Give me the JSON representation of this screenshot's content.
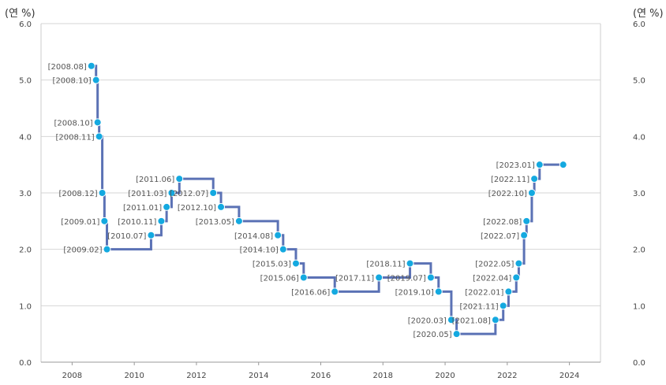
{
  "chart_data": {
    "type": "line",
    "step": "after",
    "y_unit_left": "(연 %)",
    "y_unit_right": "(연 %)",
    "ylim": [
      0,
      6
    ],
    "xlim": [
      2007,
      2025
    ],
    "y_ticks": [
      "0.0",
      "1.0",
      "2.0",
      "3.0",
      "4.0",
      "5.0",
      "6.0"
    ],
    "x_ticks": [
      "2008",
      "2010",
      "2012",
      "2014",
      "2016",
      "2018",
      "2020",
      "2022",
      "2024"
    ],
    "grid": "horizontal",
    "line_color": "#5b72b5",
    "marker_color": "#14a9e0",
    "points": [
      {
        "label": "[2008.08]",
        "x": 2008.62,
        "y": 5.25
      },
      {
        "label": "[2008.10]",
        "x": 2008.77,
        "y": 5.0
      },
      {
        "label": "[2008.10]",
        "x": 2008.82,
        "y": 4.25
      },
      {
        "label": "[2008.11]",
        "x": 2008.87,
        "y": 4.0
      },
      {
        "label": "[2008.12]",
        "x": 2008.97,
        "y": 3.0
      },
      {
        "label": "[2009.01]",
        "x": 2009.04,
        "y": 2.5
      },
      {
        "label": "[2009.02]",
        "x": 2009.12,
        "y": 2.0
      },
      {
        "label": "[2010.07]",
        "x": 2010.54,
        "y": 2.25
      },
      {
        "label": "[2010.11]",
        "x": 2010.87,
        "y": 2.5
      },
      {
        "label": "[2011.01]",
        "x": 2011.04,
        "y": 2.75
      },
      {
        "label": "[2011.03]",
        "x": 2011.2,
        "y": 3.0
      },
      {
        "label": "[2011.06]",
        "x": 2011.45,
        "y": 3.25
      },
      {
        "label": "[2012.07]",
        "x": 2012.54,
        "y": 3.0
      },
      {
        "label": "[2012.10]",
        "x": 2012.79,
        "y": 2.75
      },
      {
        "label": "[2013.05]",
        "x": 2013.37,
        "y": 2.5
      },
      {
        "label": "[2014.08]",
        "x": 2014.62,
        "y": 2.25
      },
      {
        "label": "[2014.10]",
        "x": 2014.79,
        "y": 2.0
      },
      {
        "label": "[2015.03]",
        "x": 2015.2,
        "y": 1.75
      },
      {
        "label": "[2015.06]",
        "x": 2015.45,
        "y": 1.5
      },
      {
        "label": "[2016.06]",
        "x": 2016.45,
        "y": 1.25
      },
      {
        "label": "[2017.11]",
        "x": 2017.87,
        "y": 1.5
      },
      {
        "label": "[2018.11]",
        "x": 2018.87,
        "y": 1.75
      },
      {
        "label": "[2019.07]",
        "x": 2019.54,
        "y": 1.5
      },
      {
        "label": "[2019.10]",
        "x": 2019.79,
        "y": 1.25
      },
      {
        "label": "[2020.03]",
        "x": 2020.2,
        "y": 0.75
      },
      {
        "label": "[2020.05]",
        "x": 2020.37,
        "y": 0.5
      },
      {
        "label": "[2021.08]",
        "x": 2021.62,
        "y": 0.75
      },
      {
        "label": "[2021.11]",
        "x": 2021.87,
        "y": 1.0
      },
      {
        "label": "[2022.01]",
        "x": 2022.04,
        "y": 1.25
      },
      {
        "label": "[2022.04]",
        "x": 2022.29,
        "y": 1.5
      },
      {
        "label": "[2022.05]",
        "x": 2022.37,
        "y": 1.75
      },
      {
        "label": "[2022.07]",
        "x": 2022.54,
        "y": 2.25
      },
      {
        "label": "[2022.08]",
        "x": 2022.62,
        "y": 2.5
      },
      {
        "label": "[2022.10]",
        "x": 2022.79,
        "y": 3.0
      },
      {
        "label": "[2022.11]",
        "x": 2022.87,
        "y": 3.25
      },
      {
        "label": "[2023.01]",
        "x": 2023.04,
        "y": 3.5
      },
      {
        "label": "",
        "x": 2023.8,
        "y": 3.5
      }
    ]
  }
}
